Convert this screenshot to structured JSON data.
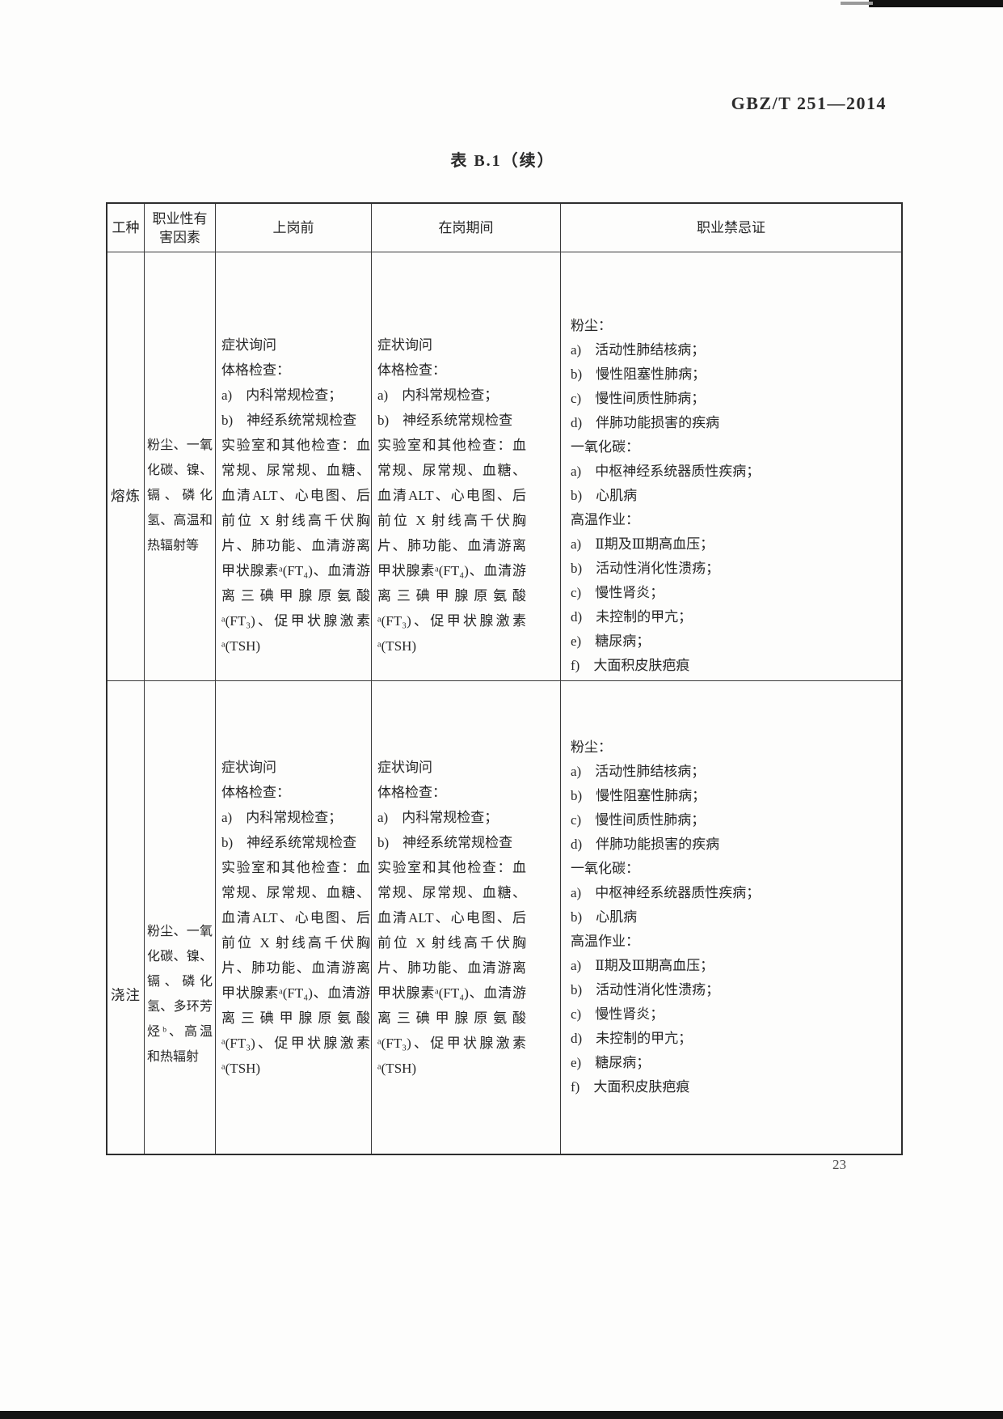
{
  "page": {
    "standard_code": "GBZ/T 251—2014",
    "table_title": "表 B.1（续）",
    "page_number": "23"
  },
  "table": {
    "headers": {
      "job": "工种",
      "hazard": "职业性有害因素",
      "pre": "上岗前",
      "during": "在岗期间",
      "contra": "职业禁忌证"
    },
    "rows": [
      {
        "job": "熔炼",
        "hazard": "粉尘、一氧化碳、镍、镉、磷化氢、高温和热辐射等",
        "pre_lines": [
          "症状询问",
          "体格检查：",
          "a)　内科常规检查；",
          "b)　神经系统常规检查",
          "实验室和其他检查：血常规、尿常规、血糖、血清ALT、心电图、后前位 X 射线高千伏胸片、肺功能、血清游离甲状腺素ᵃ(FT₄)、血清游离三碘甲腺原氨酸ᵃ(FT₃)、促甲状腺激素ᵃ(TSH)"
        ],
        "during_lines": [
          "症状询问",
          "体格检查：",
          "a)　内科常规检查；",
          "b)　神经系统常规检查",
          "实验室和其他检查：血常规、尿常规、血糖、血清ALT、心电图、后前位 X 射线高千伏胸片、肺功能、血清游离甲状腺素ᵃ(FT₄)、血清游离三碘甲腺原氨酸ᵃ(FT₃)、促甲状腺激素ᵃ(TSH)"
        ],
        "contra_lines": [
          "粉尘：",
          "a)　活动性肺结核病；",
          "b)　慢性阻塞性肺病；",
          "c)　慢性间质性肺病；",
          "d)　伴肺功能损害的疾病",
          "一氧化碳：",
          "a)　中枢神经系统器质性疾病；",
          "b)　心肌病",
          "高温作业：",
          "a)　Ⅱ期及Ⅲ期高血压；",
          "b)　活动性消化性溃疡；",
          "c)　慢性肾炎；",
          "d)　未控制的甲亢；",
          "e)　糖尿病；",
          "f)　大面积皮肤疤痕"
        ]
      },
      {
        "job": "浇注",
        "hazard": "粉尘、一氧化碳、镍、镉、磷化氢、多环芳烃ᵇ、高温和热辐射",
        "pre_lines": [
          "症状询问",
          "体格检查：",
          "a)　内科常规检查；",
          "b)　神经系统常规检查",
          "实验室和其他检查：血常规、尿常规、血糖、血清ALT、心电图、后前位 X 射线高千伏胸片、肺功能、血清游离甲状腺素ᵃ(FT₄)、血清游离三碘甲腺原氨酸ᵃ(FT₃)、促甲状腺激素ᵃ(TSH)"
        ],
        "during_lines": [
          "症状询问",
          "体格检查：",
          "a)　内科常规检查；",
          "b)　神经系统常规检查",
          "实验室和其他检查：血常规、尿常规、血糖、血清ALT、心电图、后前位 X 射线高千伏胸片、肺功能、血清游离甲状腺素ᵃ(FT₄)、血清游离三碘甲腺原氨酸ᵃ(FT₃)、促甲状腺激素ᵃ(TSH)"
        ],
        "contra_lines": [
          "粉尘：",
          "a)　活动性肺结核病；",
          "b)　慢性阻塞性肺病；",
          "c)　慢性间质性肺病；",
          "d)　伴肺功能损害的疾病",
          "一氧化碳：",
          "a)　中枢神经系统器质性疾病；",
          "b)　心肌病",
          "高温作业：",
          "a)　Ⅱ期及Ⅲ期高血压；",
          "b)　活动性消化性溃疡；",
          "c)　慢性肾炎；",
          "d)　未控制的甲亢；",
          "e)　糖尿病；",
          "f)　大面积皮肤疤痕"
        ]
      }
    ]
  }
}
